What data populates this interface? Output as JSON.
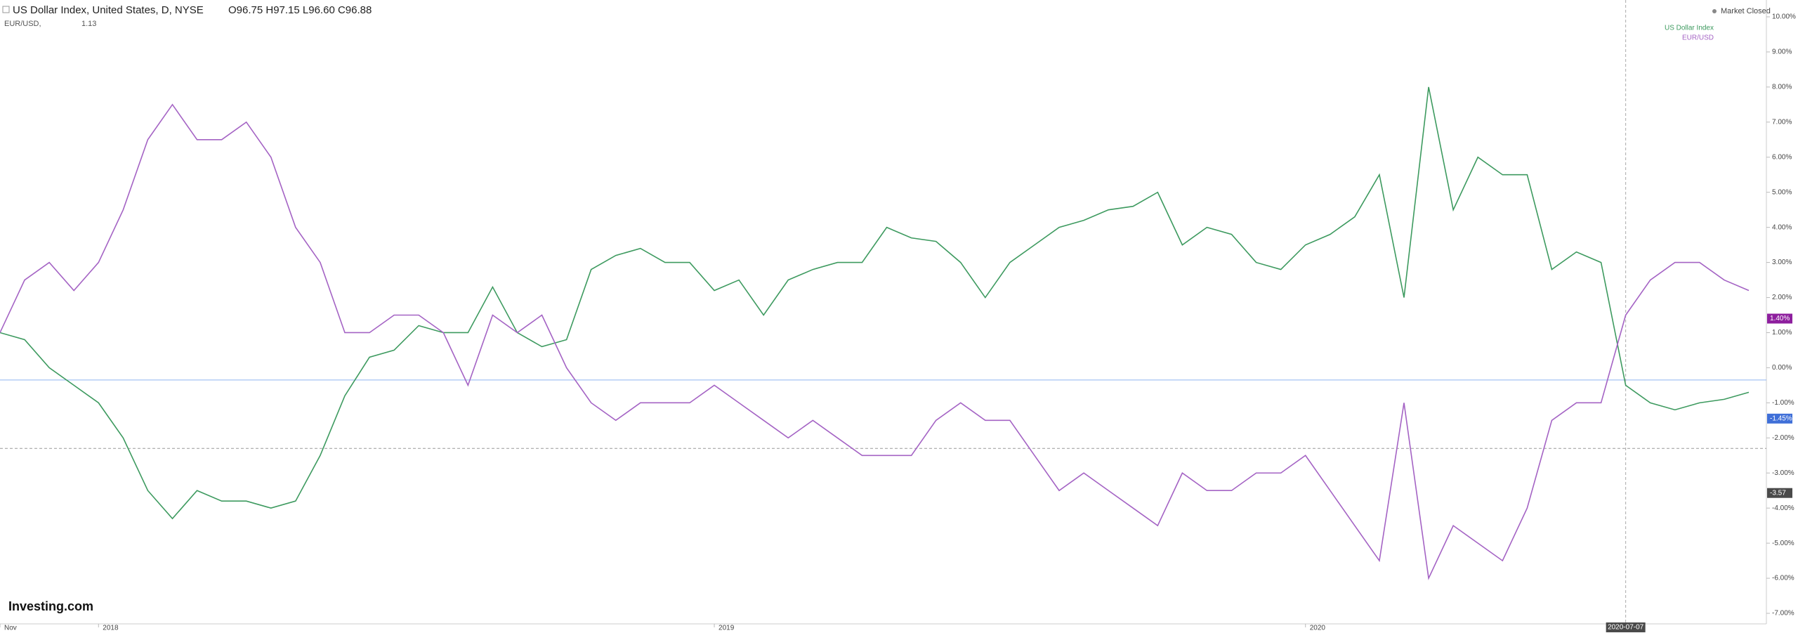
{
  "chart_data": {
    "type": "line",
    "title": "US Dollar Index, United States, D, NYSE",
    "ohlc": "O96.75 H97.15 L96.60 C96.88",
    "subtitle": "EUR/USD,",
    "subtitle_value": "1.13",
    "status": "Market Closed",
    "logo": "Investing.com",
    "categories": [
      "Nov",
      null,
      null,
      null,
      "2018",
      null,
      null,
      null,
      null,
      null,
      null,
      null,
      null,
      null,
      null,
      null,
      null,
      null,
      null,
      null,
      null,
      null,
      null,
      null,
      null,
      null,
      null,
      null,
      null,
      "2019",
      null,
      null,
      null,
      null,
      null,
      null,
      null,
      null,
      null,
      null,
      null,
      null,
      null,
      null,
      null,
      null,
      null,
      null,
      null,
      null,
      null,
      null,
      null,
      "2020",
      null,
      null,
      null,
      null,
      null,
      null,
      null,
      null,
      null,
      null,
      null,
      null,
      "2020-07-07",
      null,
      null,
      null,
      null,
      null
    ],
    "series": [
      {
        "name": "US Dollar Index",
        "color": "#3d9a5f",
        "values": [
          1.0,
          0.8,
          0.0,
          -0.5,
          -1.0,
          -2.0,
          -3.5,
          -4.3,
          -3.5,
          -3.8,
          -3.8,
          -4.0,
          -3.8,
          -2.5,
          -0.8,
          0.3,
          0.5,
          1.2,
          1.0,
          1.0,
          2.3,
          1.0,
          0.6,
          0.8,
          2.8,
          3.2,
          3.4,
          3.0,
          3.0,
          2.2,
          2.5,
          1.5,
          2.5,
          2.8,
          3.0,
          3.0,
          4.0,
          3.7,
          3.6,
          3.0,
          2.0,
          3.0,
          3.5,
          4.0,
          4.2,
          4.5,
          4.6,
          5.0,
          3.5,
          4.0,
          3.8,
          3.0,
          2.8,
          3.5,
          3.8,
          4.3,
          5.5,
          2.0,
          8.0,
          4.5,
          6.0,
          5.5,
          5.5,
          2.8,
          3.3,
          3.0,
          -0.5,
          -1.0,
          -1.2,
          -1.0,
          -0.9,
          -0.7
        ]
      },
      {
        "name": "EUR/USD",
        "color": "#a463c4",
        "values": [
          1.0,
          2.5,
          3.0,
          2.2,
          3.0,
          4.5,
          6.5,
          7.5,
          6.5,
          6.5,
          7.0,
          6.0,
          4.0,
          3.0,
          1.0,
          1.0,
          1.5,
          1.5,
          1.0,
          -0.5,
          1.5,
          1.0,
          1.5,
          0.0,
          -1.0,
          -1.5,
          -1.0,
          -1.0,
          -1.0,
          -0.5,
          -1.0,
          -1.5,
          -2.0,
          -1.5,
          -2.0,
          -2.5,
          -2.5,
          -2.5,
          -1.5,
          -1.0,
          -1.5,
          -1.5,
          -2.5,
          -3.5,
          -3.0,
          -3.5,
          -4.0,
          -4.5,
          -3.0,
          -3.5,
          -3.5,
          -3.0,
          -3.0,
          -2.5,
          -3.5,
          -4.5,
          -5.5,
          -1.0,
          -6.0,
          -4.5,
          -5.0,
          -5.5,
          -4.0,
          -1.5,
          -1.0,
          -1.0,
          1.5,
          2.5,
          3.0,
          3.0,
          2.5,
          2.2
        ]
      }
    ],
    "ylim": [
      -7.3,
      10.3
    ],
    "yticks": [
      {
        "value": 10,
        "label": "10.00%"
      },
      {
        "value": 9,
        "label": "9.00%"
      },
      {
        "value": 8,
        "label": "8.00%"
      },
      {
        "value": 7,
        "label": "7.00%"
      },
      {
        "value": 6,
        "label": "6.00%"
      },
      {
        "value": 5,
        "label": "5.00%"
      },
      {
        "value": 4,
        "label": "4.00%"
      },
      {
        "value": 3,
        "label": "3.00%"
      },
      {
        "value": 2,
        "label": "2.00%"
      },
      {
        "value": 1,
        "label": "1.00%"
      },
      {
        "value": 0,
        "label": "0.00%"
      },
      {
        "value": -1,
        "label": "-1.00%"
      },
      {
        "value": -2,
        "label": "-2.00%"
      },
      {
        "value": -3,
        "label": "-3.00%"
      },
      {
        "value": -4,
        "label": "-4.00%"
      },
      {
        "value": -5,
        "label": "-5.00%"
      },
      {
        "value": -6,
        "label": "-6.00%"
      },
      {
        "value": -7,
        "label": "-7.00%"
      }
    ],
    "markers": [
      {
        "value": 1.4,
        "label": "1.40%",
        "color": "#8e1f9e"
      },
      {
        "value": -1.45,
        "label": "-1.45%",
        "color": "#3f6fd8"
      },
      {
        "value": -3.57,
        "label": "-3.57",
        "color": "#4a4a4a"
      }
    ],
    "reference_lines": [
      {
        "value": -0.35,
        "color": "#8fb4f0"
      },
      {
        "value": -2.3,
        "color": "#999999"
      }
    ],
    "crosshair_index": 66
  }
}
